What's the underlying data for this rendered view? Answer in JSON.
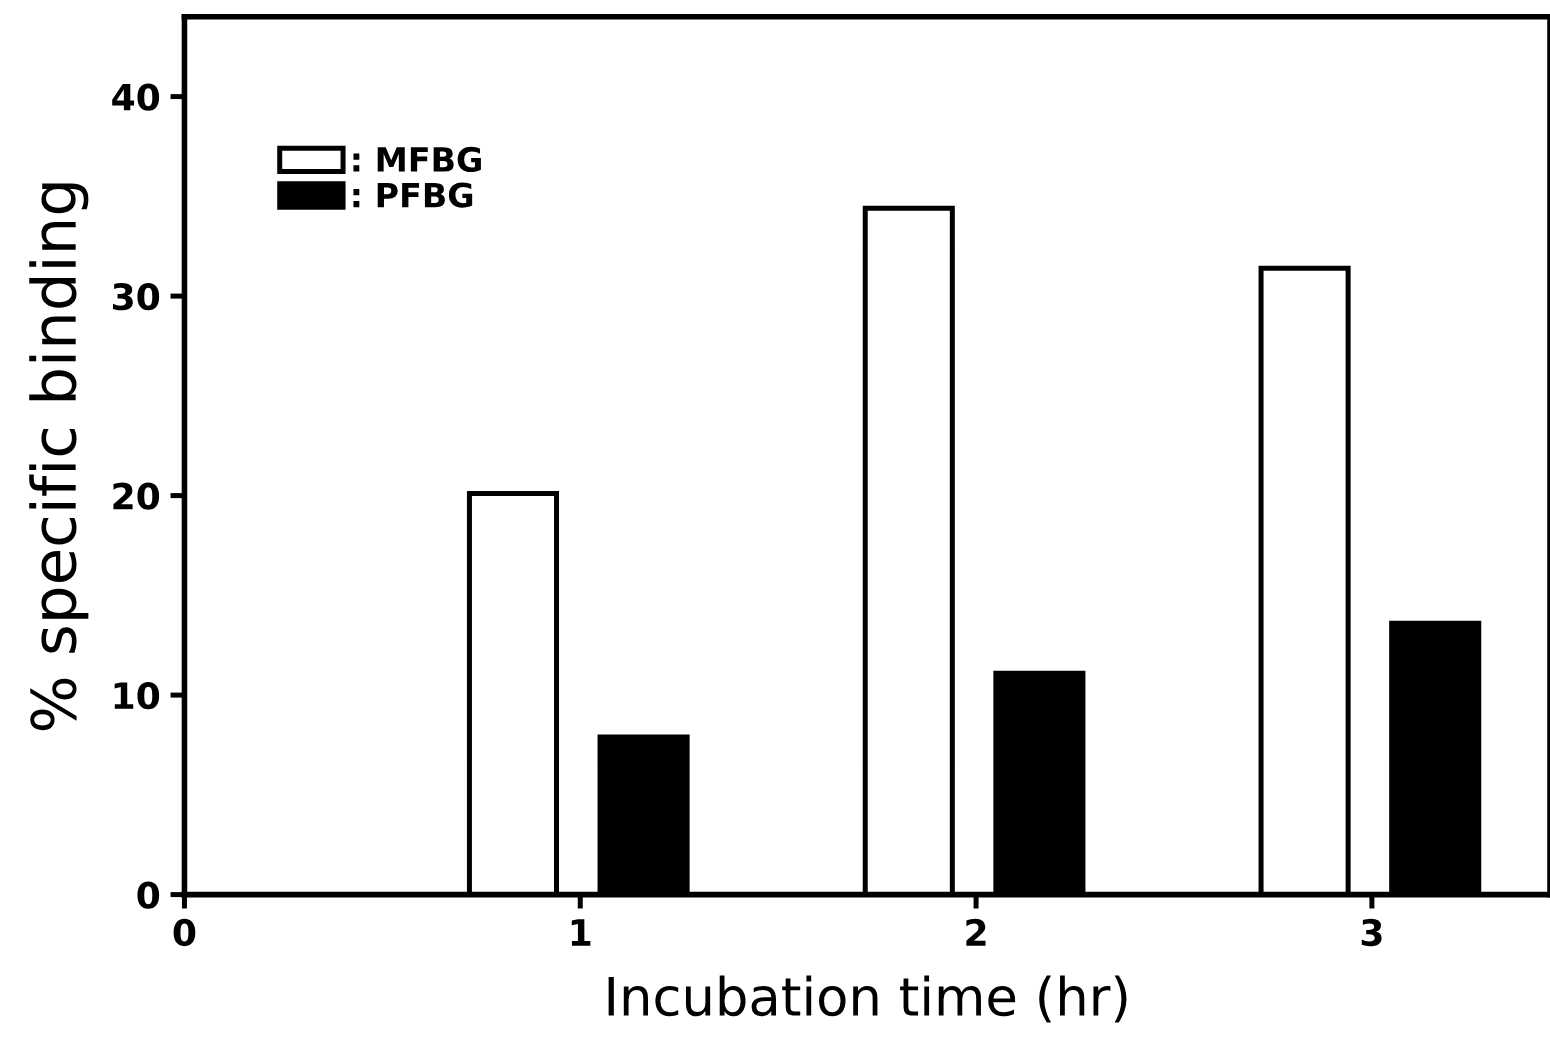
{
  "chart_data": {
    "type": "bar",
    "xlabel": "Incubation time (hr)",
    "ylabel": "% specific binding",
    "x": [
      1,
      2,
      3
    ],
    "series": [
      {
        "name": ": MFBG",
        "color": "#ffffff",
        "values": [
          20.1,
          34.4,
          31.4
        ]
      },
      {
        "name": ": PFBG",
        "color": "#000000",
        "values": [
          7.9,
          11.1,
          13.6
        ]
      }
    ],
    "xlim": [
      0,
      3.45
    ],
    "xticks": [
      0,
      1,
      2,
      3
    ],
    "ylim": [
      0,
      44
    ],
    "yticks": [
      0,
      10,
      20,
      30,
      40
    ],
    "grid": false,
    "legend": "top left"
  }
}
